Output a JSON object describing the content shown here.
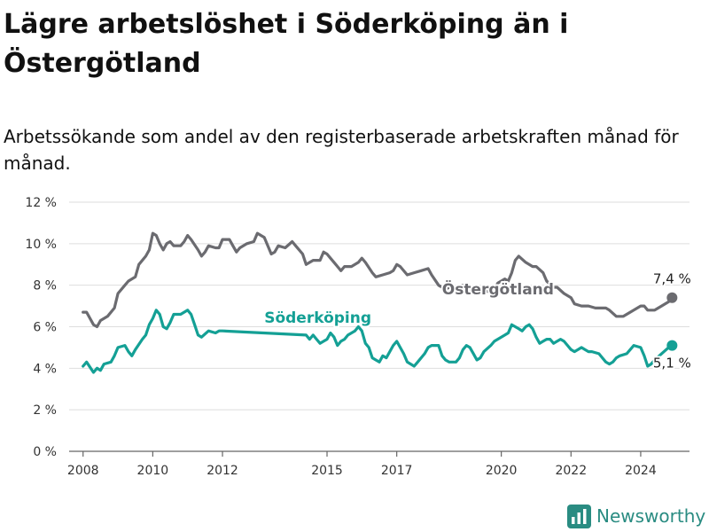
{
  "title": "Lägre arbetslöshet i Söderköping än i Östergötland",
  "subtitle": "Arbetssökande som andel av den registerbaserade arbetskraften månad för månad.",
  "brand": {
    "name": "Newsworthy",
    "color": "#2a8c82"
  },
  "chart_data": {
    "type": "line",
    "x_unit": "year",
    "xlim": [
      2007.6,
      2025.4
    ],
    "ylim": [
      0,
      12
    ],
    "yticks": [
      0,
      2,
      4,
      6,
      8,
      10,
      12
    ],
    "ytick_labels": [
      "0 %",
      "2 %",
      "4 %",
      "6 %",
      "8 %",
      "10 %",
      "12 %"
    ],
    "xticks": [
      2008,
      2010,
      2012,
      2015,
      2017,
      2020,
      2022,
      2024
    ],
    "xtick_labels": [
      "2008",
      "2010",
      "2012",
      "2015",
      "2017",
      "2020",
      "2022",
      "2024"
    ],
    "grid": true,
    "series": [
      {
        "name": "Östergötland",
        "color": "#6b6b70",
        "end_label": "7,4 %",
        "points": [
          [
            2008.0,
            6.7
          ],
          [
            2008.1,
            6.7
          ],
          [
            2008.3,
            6.1
          ],
          [
            2008.4,
            6.0
          ],
          [
            2008.5,
            6.3
          ],
          [
            2008.7,
            6.5
          ],
          [
            2008.9,
            6.9
          ],
          [
            2009.0,
            7.6
          ],
          [
            2009.2,
            8.0
          ],
          [
            2009.3,
            8.2
          ],
          [
            2009.5,
            8.4
          ],
          [
            2009.6,
            9.0
          ],
          [
            2009.8,
            9.4
          ],
          [
            2009.9,
            9.7
          ],
          [
            2010.0,
            10.5
          ],
          [
            2010.1,
            10.4
          ],
          [
            2010.2,
            10.0
          ],
          [
            2010.3,
            9.7
          ],
          [
            2010.4,
            10.0
          ],
          [
            2010.5,
            10.1
          ],
          [
            2010.6,
            9.9
          ],
          [
            2010.8,
            9.9
          ],
          [
            2010.9,
            10.1
          ],
          [
            2011.0,
            10.4
          ],
          [
            2011.1,
            10.2
          ],
          [
            2011.3,
            9.7
          ],
          [
            2011.4,
            9.4
          ],
          [
            2011.5,
            9.6
          ],
          [
            2011.6,
            9.9
          ],
          [
            2011.8,
            9.8
          ],
          [
            2011.9,
            9.8
          ],
          [
            2012.0,
            10.2
          ],
          [
            2012.2,
            10.2
          ],
          [
            2012.3,
            9.9
          ],
          [
            2012.4,
            9.6
          ],
          [
            2012.5,
            9.8
          ],
          [
            2012.7,
            10.0
          ],
          [
            2012.9,
            10.1
          ],
          [
            2013.0,
            10.5
          ],
          [
            2013.2,
            10.3
          ],
          [
            2013.3,
            9.9
          ],
          [
            2013.4,
            9.5
          ],
          [
            2013.5,
            9.6
          ],
          [
            2013.6,
            9.9
          ],
          [
            2013.8,
            9.8
          ],
          [
            2014.0,
            10.1
          ],
          [
            2014.1,
            9.9
          ],
          [
            2014.3,
            9.5
          ],
          [
            2014.4,
            9.0
          ],
          [
            2014.6,
            9.2
          ],
          [
            2014.8,
            9.2
          ],
          [
            2014.9,
            9.6
          ],
          [
            2015.0,
            9.5
          ],
          [
            2015.1,
            9.3
          ],
          [
            2015.3,
            8.9
          ],
          [
            2015.4,
            8.7
          ],
          [
            2015.5,
            8.9
          ],
          [
            2015.7,
            8.9
          ],
          [
            2015.9,
            9.1
          ],
          [
            2016.0,
            9.3
          ],
          [
            2016.1,
            9.1
          ],
          [
            2016.3,
            8.6
          ],
          [
            2016.4,
            8.4
          ],
          [
            2016.6,
            8.5
          ],
          [
            2016.8,
            8.6
          ],
          [
            2016.9,
            8.7
          ],
          [
            2017.0,
            9.0
          ],
          [
            2017.1,
            8.9
          ],
          [
            2017.3,
            8.5
          ],
          [
            2017.5,
            8.6
          ],
          [
            2017.7,
            8.7
          ],
          [
            2017.9,
            8.8
          ],
          [
            2018.0,
            8.5
          ],
          [
            2018.2,
            8.0
          ],
          [
            2018.4,
            7.8
          ],
          [
            2018.5,
            7.9
          ],
          [
            2018.7,
            7.9
          ],
          [
            2018.9,
            8.0
          ],
          [
            2019.0,
            7.9
          ],
          [
            2019.2,
            7.6
          ],
          [
            2019.4,
            7.7
          ],
          [
            2019.6,
            7.7
          ],
          [
            2019.8,
            7.8
          ],
          [
            2019.9,
            8.1
          ],
          [
            2020.1,
            8.3
          ],
          [
            2020.2,
            8.2
          ],
          [
            2020.3,
            8.6
          ],
          [
            2020.4,
            9.2
          ],
          [
            2020.5,
            9.4
          ],
          [
            2020.7,
            9.1
          ],
          [
            2020.9,
            8.9
          ],
          [
            2021.0,
            8.9
          ],
          [
            2021.2,
            8.6
          ],
          [
            2021.3,
            8.2
          ],
          [
            2021.5,
            7.9
          ],
          [
            2021.6,
            7.9
          ],
          [
            2021.8,
            7.6
          ],
          [
            2022.0,
            7.4
          ],
          [
            2022.1,
            7.1
          ],
          [
            2022.3,
            7.0
          ],
          [
            2022.5,
            7.0
          ],
          [
            2022.7,
            6.9
          ],
          [
            2022.9,
            6.9
          ],
          [
            2023.0,
            6.9
          ],
          [
            2023.1,
            6.8
          ],
          [
            2023.3,
            6.5
          ],
          [
            2023.5,
            6.5
          ],
          [
            2023.7,
            6.7
          ],
          [
            2023.8,
            6.8
          ],
          [
            2024.0,
            7.0
          ],
          [
            2024.1,
            7.0
          ],
          [
            2024.2,
            6.8
          ],
          [
            2024.4,
            6.8
          ],
          [
            2024.6,
            7.0
          ],
          [
            2024.8,
            7.2
          ],
          [
            2024.9,
            7.4
          ]
        ]
      },
      {
        "name": "Söderköping",
        "color": "#14a095",
        "end_label": "5,1 %",
        "points": [
          [
            2008.0,
            4.1
          ],
          [
            2008.1,
            4.3
          ],
          [
            2008.3,
            3.8
          ],
          [
            2008.4,
            4.0
          ],
          [
            2008.5,
            3.9
          ],
          [
            2008.6,
            4.2
          ],
          [
            2008.8,
            4.3
          ],
          [
            2008.9,
            4.6
          ],
          [
            2009.0,
            5.0
          ],
          [
            2009.2,
            5.1
          ],
          [
            2009.3,
            4.8
          ],
          [
            2009.4,
            4.6
          ],
          [
            2009.5,
            4.9
          ],
          [
            2009.7,
            5.4
          ],
          [
            2009.8,
            5.6
          ],
          [
            2009.9,
            6.1
          ],
          [
            2010.0,
            6.4
          ],
          [
            2010.1,
            6.8
          ],
          [
            2010.2,
            6.6
          ],
          [
            2010.3,
            6.0
          ],
          [
            2010.4,
            5.9
          ],
          [
            2010.5,
            6.2
          ],
          [
            2010.6,
            6.6
          ],
          [
            2010.8,
            6.6
          ],
          [
            2010.9,
            6.7
          ],
          [
            2011.0,
            6.8
          ],
          [
            2011.1,
            6.6
          ],
          [
            2011.2,
            6.1
          ],
          [
            2011.3,
            5.6
          ],
          [
            2011.4,
            5.5
          ],
          [
            2011.6,
            5.8
          ],
          [
            2011.8,
            5.7
          ],
          [
            2011.9,
            5.8
          ],
          [
            2012.0,
            5.8
          ],
          [
            2014.4,
            5.6
          ],
          [
            2014.5,
            5.4
          ],
          [
            2014.6,
            5.6
          ],
          [
            2014.7,
            5.4
          ],
          [
            2014.8,
            5.2
          ],
          [
            2014.9,
            5.3
          ],
          [
            2015.0,
            5.4
          ],
          [
            2015.1,
            5.7
          ],
          [
            2015.2,
            5.5
          ],
          [
            2015.3,
            5.1
          ],
          [
            2015.4,
            5.3
          ],
          [
            2015.5,
            5.4
          ],
          [
            2015.6,
            5.6
          ],
          [
            2015.8,
            5.8
          ],
          [
            2015.9,
            6.0
          ],
          [
            2016.0,
            5.8
          ],
          [
            2016.1,
            5.2
          ],
          [
            2016.2,
            5.0
          ],
          [
            2016.3,
            4.5
          ],
          [
            2016.4,
            4.4
          ],
          [
            2016.5,
            4.3
          ],
          [
            2016.6,
            4.6
          ],
          [
            2016.7,
            4.5
          ],
          [
            2016.8,
            4.8
          ],
          [
            2016.9,
            5.1
          ],
          [
            2017.0,
            5.3
          ],
          [
            2017.1,
            5.0
          ],
          [
            2017.2,
            4.7
          ],
          [
            2017.3,
            4.3
          ],
          [
            2017.4,
            4.2
          ],
          [
            2017.5,
            4.1
          ],
          [
            2017.6,
            4.3
          ],
          [
            2017.8,
            4.7
          ],
          [
            2017.9,
            5.0
          ],
          [
            2018.0,
            5.1
          ],
          [
            2018.2,
            5.1
          ],
          [
            2018.3,
            4.6
          ],
          [
            2018.4,
            4.4
          ],
          [
            2018.5,
            4.3
          ],
          [
            2018.7,
            4.3
          ],
          [
            2018.8,
            4.5
          ],
          [
            2018.9,
            4.9
          ],
          [
            2019.0,
            5.1
          ],
          [
            2019.1,
            5.0
          ],
          [
            2019.2,
            4.7
          ],
          [
            2019.3,
            4.4
          ],
          [
            2019.4,
            4.5
          ],
          [
            2019.5,
            4.8
          ],
          [
            2019.7,
            5.1
          ],
          [
            2019.8,
            5.3
          ],
          [
            2020.0,
            5.5
          ],
          [
            2020.1,
            5.6
          ],
          [
            2020.2,
            5.7
          ],
          [
            2020.3,
            6.1
          ],
          [
            2020.4,
            6.0
          ],
          [
            2020.5,
            5.9
          ],
          [
            2020.6,
            5.8
          ],
          [
            2020.7,
            6.0
          ],
          [
            2020.8,
            6.1
          ],
          [
            2020.9,
            5.9
          ],
          [
            2021.0,
            5.5
          ],
          [
            2021.1,
            5.2
          ],
          [
            2021.2,
            5.3
          ],
          [
            2021.3,
            5.4
          ],
          [
            2021.4,
            5.4
          ],
          [
            2021.5,
            5.2
          ],
          [
            2021.6,
            5.3
          ],
          [
            2021.7,
            5.4
          ],
          [
            2021.8,
            5.3
          ],
          [
            2021.9,
            5.1
          ],
          [
            2022.0,
            4.9
          ],
          [
            2022.1,
            4.8
          ],
          [
            2022.2,
            4.9
          ],
          [
            2022.3,
            5.0
          ],
          [
            2022.4,
            4.9
          ],
          [
            2022.5,
            4.8
          ],
          [
            2022.6,
            4.8
          ],
          [
            2022.8,
            4.7
          ],
          [
            2022.9,
            4.5
          ],
          [
            2023.0,
            4.3
          ],
          [
            2023.1,
            4.2
          ],
          [
            2023.2,
            4.3
          ],
          [
            2023.3,
            4.5
          ],
          [
            2023.4,
            4.6
          ],
          [
            2023.6,
            4.7
          ],
          [
            2023.7,
            4.9
          ],
          [
            2023.8,
            5.1
          ],
          [
            2024.0,
            5.0
          ],
          [
            2024.1,
            4.6
          ],
          [
            2024.2,
            4.1
          ],
          [
            2024.3,
            4.2
          ],
          [
            2024.4,
            4.4
          ],
          [
            2024.6,
            4.7
          ],
          [
            2024.8,
            5.0
          ],
          [
            2024.9,
            5.1
          ]
        ]
      }
    ],
    "series_labels": [
      {
        "text": "Östergötland",
        "x": 2018.3,
        "y": 7.55,
        "color": "#6b6b70"
      },
      {
        "text": "Söderköping",
        "x": 2013.2,
        "y": 6.2,
        "color": "#14a095"
      }
    ]
  }
}
